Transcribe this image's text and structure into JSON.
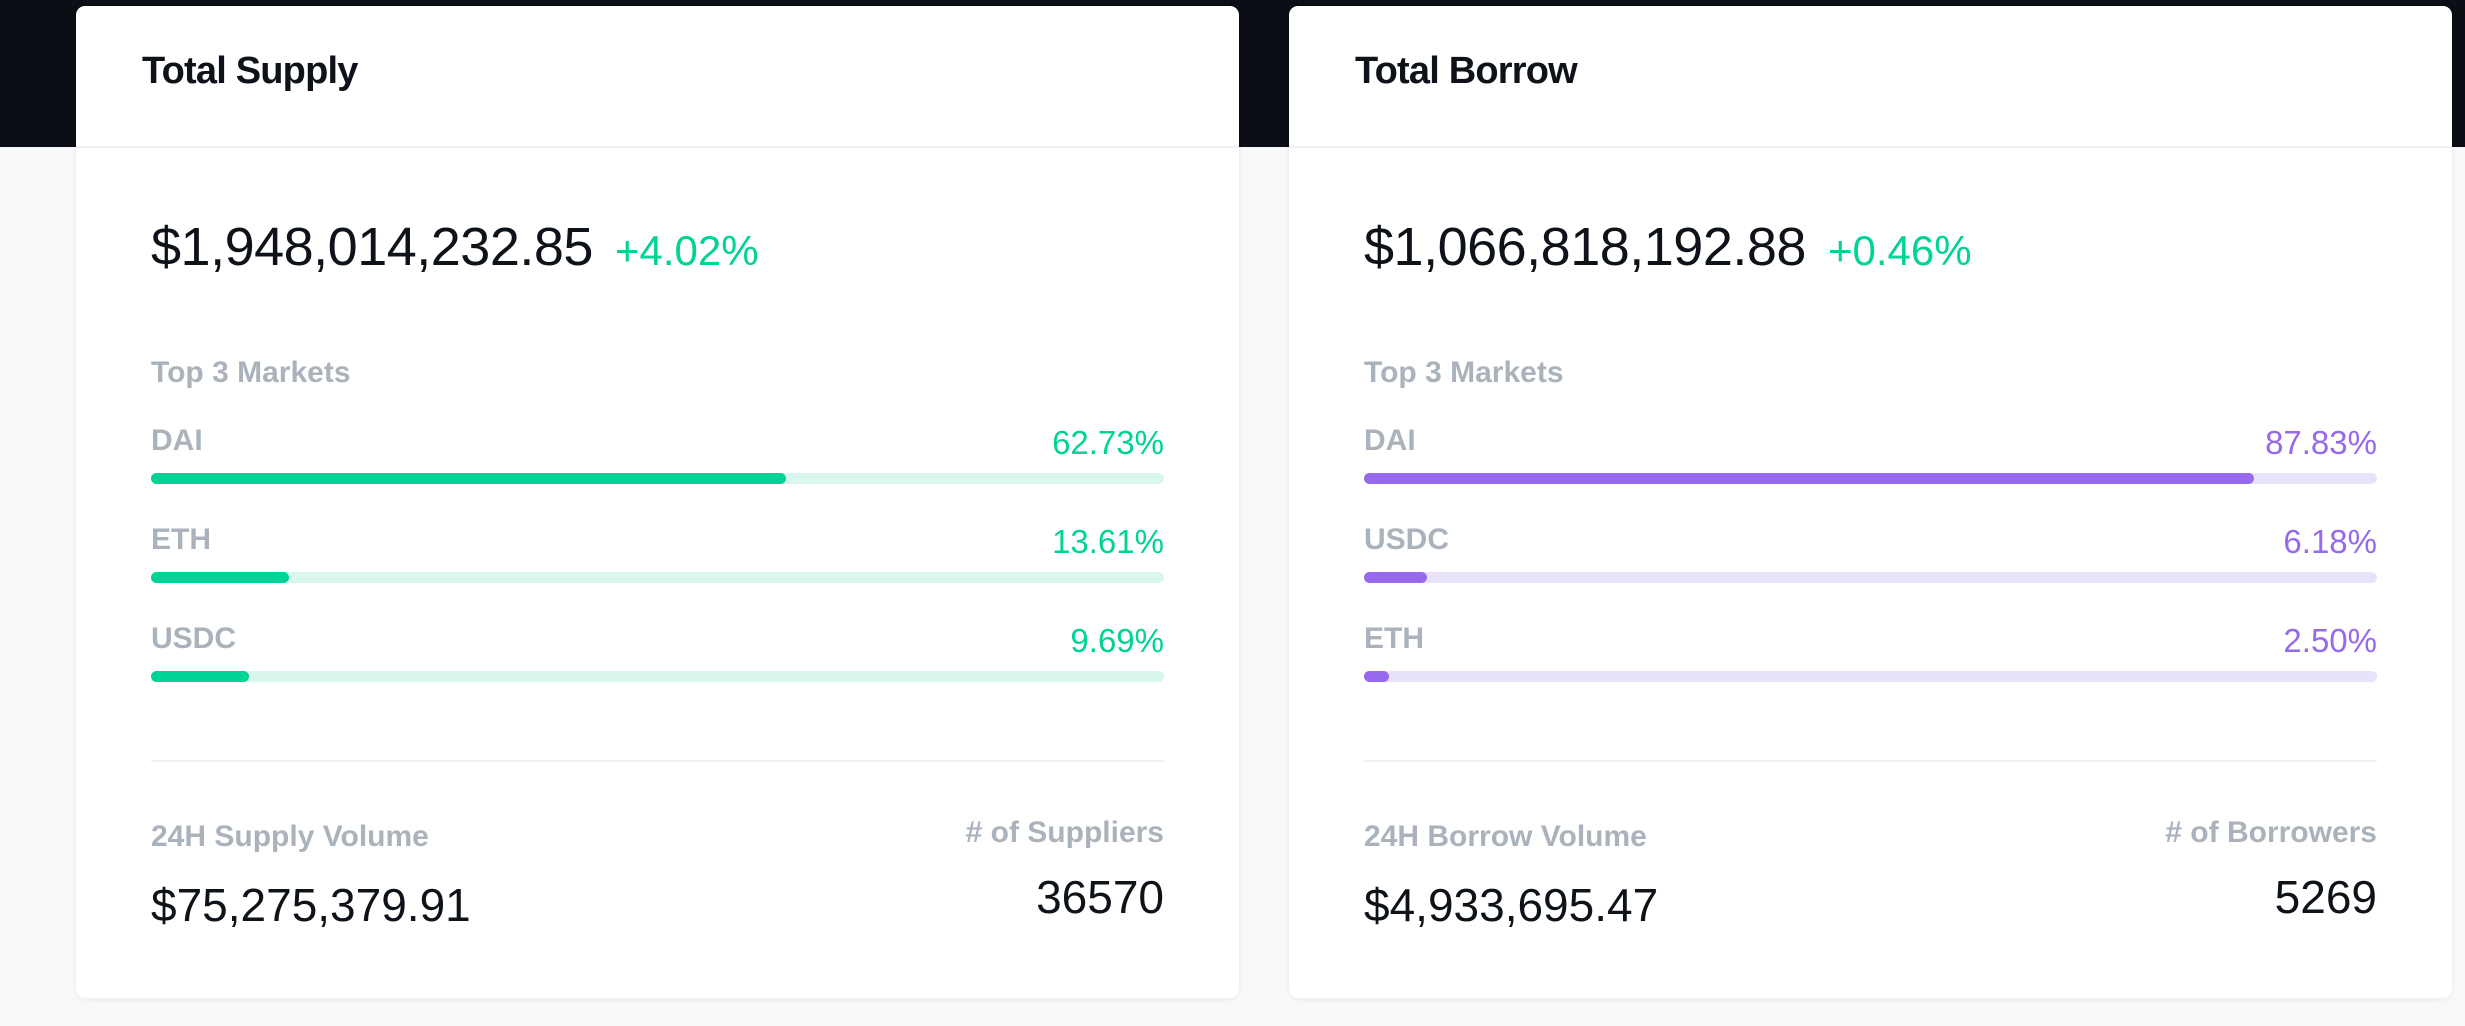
{
  "supply": {
    "title": "Total Supply",
    "total": "$1,948,014,232.85",
    "change": "+4.02%",
    "top_markets_label": "Top 3 Markets",
    "markets": [
      {
        "name": "DAI",
        "percent": "62.73%",
        "share": 62.73
      },
      {
        "name": "ETH",
        "percent": "13.61%",
        "share": 13.61
      },
      {
        "name": "USDC",
        "percent": "9.69%",
        "share": 9.69
      }
    ],
    "volume_label": "24H Supply Volume",
    "volume": "$75,275,379.91",
    "count_label": "# of Suppliers",
    "count": "36570"
  },
  "borrow": {
    "title": "Total Borrow",
    "total": "$1,066,818,192.88",
    "change": "+0.46%",
    "top_markets_label": "Top 3 Markets",
    "markets": [
      {
        "name": "DAI",
        "percent": "87.83%",
        "share": 87.83
      },
      {
        "name": "USDC",
        "percent": "6.18%",
        "share": 6.18
      },
      {
        "name": "ETH",
        "percent": "2.50%",
        "share": 2.5
      }
    ],
    "volume_label": "24H Borrow Volume",
    "volume": "$4,933,695.47",
    "count_label": "# of Borrowers",
    "count": "5269"
  },
  "colors": {
    "supply_accent": "#00d395",
    "borrow_accent": "#9669ed"
  }
}
